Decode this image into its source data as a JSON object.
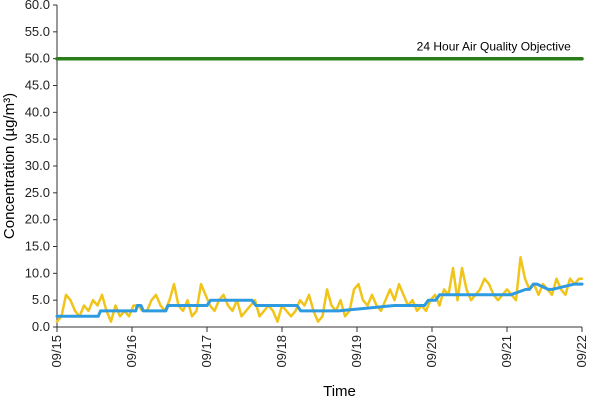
{
  "chart_data": {
    "type": "line",
    "title": "",
    "xlabel": "Time",
    "ylabel": "Concentration (µg/m³)",
    "ylim": [
      0,
      60
    ],
    "y_ticks": [
      "0.0",
      "5.0",
      "10.0",
      "15.0",
      "20.0",
      "25.0",
      "30.0",
      "35.0",
      "40.0",
      "45.0",
      "50.0",
      "55.0",
      "60.0"
    ],
    "y_tick_values": [
      0,
      5,
      10,
      15,
      20,
      25,
      30,
      35,
      40,
      45,
      50,
      55,
      60
    ],
    "x_ticks": [
      "09/15",
      "09/16",
      "09/17",
      "09/18",
      "09/19",
      "09/20",
      "09/21",
      "09/22"
    ],
    "x_tick_values": [
      0,
      1,
      2,
      3,
      4,
      5,
      6,
      7
    ],
    "xlim": [
      0,
      7
    ],
    "grid": false,
    "legend": "none",
    "series": [
      {
        "color": "#f0c419",
        "x": [
          0,
          0.06,
          0.12,
          0.18,
          0.24,
          0.3,
          0.36,
          0.42,
          0.48,
          0.54,
          0.6,
          0.66,
          0.72,
          0.78,
          0.84,
          0.9,
          0.96,
          1.02,
          1.08,
          1.14,
          1.2,
          1.26,
          1.32,
          1.38,
          1.44,
          1.5,
          1.56,
          1.62,
          1.68,
          1.74,
          1.8,
          1.86,
          1.92,
          1.98,
          2.04,
          2.1,
          2.16,
          2.22,
          2.28,
          2.34,
          2.4,
          2.46,
          2.52,
          2.58,
          2.64,
          2.7,
          2.76,
          2.82,
          2.88,
          2.94,
          3.0,
          3.06,
          3.12,
          3.18,
          3.24,
          3.3,
          3.36,
          3.42,
          3.48,
          3.54,
          3.6,
          3.66,
          3.72,
          3.78,
          3.84,
          3.9,
          3.96,
          4.02,
          4.08,
          4.14,
          4.2,
          4.26,
          4.32,
          4.38,
          4.44,
          4.5,
          4.56,
          4.62,
          4.68,
          4.74,
          4.8,
          4.86,
          4.92,
          4.98,
          5.04,
          5.1,
          5.16,
          5.22,
          5.28,
          5.34,
          5.4,
          5.46,
          5.52,
          5.58,
          5.64,
          5.7,
          5.76,
          5.82,
          5.88,
          5.94,
          6.0,
          6.06,
          6.12,
          6.18,
          6.24,
          6.3,
          6.36,
          6.42,
          6.48,
          6.54,
          6.6,
          6.66,
          6.72,
          6.78,
          6.84,
          6.9,
          6.96,
          7.0
        ],
        "values": [
          1,
          2,
          6,
          5,
          3,
          2,
          4,
          3,
          5,
          4,
          6,
          3,
          1,
          4,
          2,
          3,
          2,
          4,
          4,
          3,
          3,
          5,
          6,
          4,
          3,
          5,
          8,
          4,
          3,
          5,
          2,
          3,
          8,
          6,
          4,
          3,
          5,
          6,
          4,
          3,
          5,
          2,
          3,
          4,
          5,
          2,
          3,
          4,
          3,
          1,
          4,
          3,
          2,
          3,
          5,
          4,
          6,
          3,
          1,
          2,
          7,
          4,
          3,
          5,
          2,
          3,
          7,
          8,
          5,
          4,
          6,
          4,
          3,
          5,
          7,
          5,
          8,
          6,
          4,
          5,
          3,
          4,
          3,
          5,
          6,
          4,
          7,
          6,
          11,
          5,
          11,
          7,
          5,
          6,
          7,
          9,
          8,
          6,
          5,
          6,
          7,
          6,
          5,
          13,
          9,
          7,
          8,
          6,
          8,
          7,
          6,
          9,
          7,
          6,
          9,
          8,
          9,
          9
        ],
        "name": ""
      },
      {
        "color": "#2e9be0",
        "x": [
          0,
          0.55,
          0.58,
          1.05,
          1.07,
          1.12,
          1.15,
          1.45,
          1.48,
          2.0,
          2.05,
          2.6,
          2.65,
          3.2,
          3.25,
          3.7,
          3.75,
          4.5,
          4.55,
          4.9,
          4.95,
          5.05,
          5.1,
          6.0,
          6.05,
          6.25,
          6.3,
          6.35,
          6.4,
          6.55,
          6.6,
          6.9,
          6.95,
          7.0
        ],
        "values": [
          2,
          2,
          3,
          3,
          4,
          4,
          3,
          3,
          4,
          4,
          5,
          5,
          4,
          4,
          3,
          3,
          3,
          4,
          4,
          4,
          5,
          5,
          6,
          6,
          6,
          7,
          7,
          8,
          8,
          7,
          7,
          8,
          8,
          8
        ],
        "name": ""
      },
      {
        "color": "#2a7d1a",
        "x": [
          0,
          7
        ],
        "values": [
          50,
          50
        ],
        "name": ""
      }
    ],
    "annotation": {
      "text": "24 Hour Air Quality Objective",
      "x": 6.85,
      "y": 50
    }
  }
}
